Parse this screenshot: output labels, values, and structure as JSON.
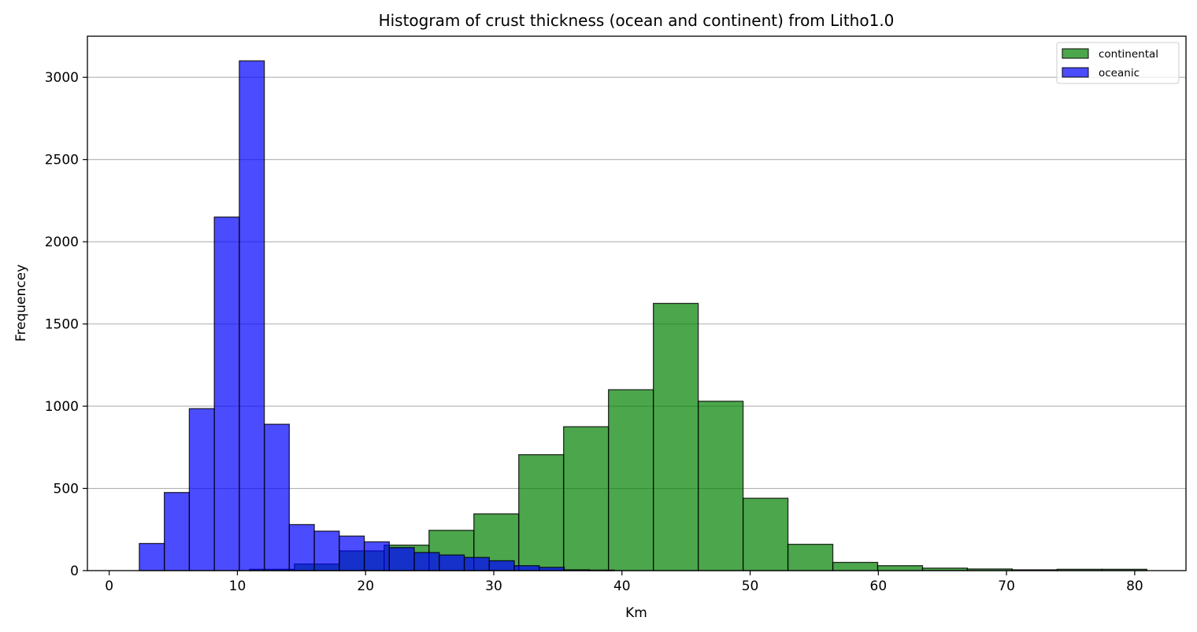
{
  "chart_data": {
    "type": "bar",
    "title": "Histogram of crust thickness (ocean and continent) from Litho1.0",
    "xlabel": "Km",
    "ylabel": "Frequencey",
    "xlim": [
      -1.7,
      84
    ],
    "ylim": [
      0,
      3250
    ],
    "xticks": [
      0,
      10,
      20,
      30,
      40,
      50,
      60,
      70,
      80
    ],
    "yticks": [
      0,
      500,
      1000,
      1500,
      2000,
      2500,
      3000
    ],
    "grid": "y",
    "legend_position": "top-right",
    "series": [
      {
        "name": "continental",
        "color": "#008000",
        "opacity": 0.7,
        "bins": [
          {
            "x0": 10.95,
            "x1": 14.45,
            "count": 8
          },
          {
            "x0": 14.45,
            "x1": 17.95,
            "count": 40
          },
          {
            "x0": 17.95,
            "x1": 21.45,
            "count": 120
          },
          {
            "x0": 21.45,
            "x1": 24.95,
            "count": 155
          },
          {
            "x0": 24.95,
            "x1": 28.45,
            "count": 245
          },
          {
            "x0": 28.45,
            "x1": 31.95,
            "count": 345
          },
          {
            "x0": 31.95,
            "x1": 35.45,
            "count": 705
          },
          {
            "x0": 35.45,
            "x1": 38.95,
            "count": 875
          },
          {
            "x0": 38.95,
            "x1": 42.45,
            "count": 1100
          },
          {
            "x0": 42.45,
            "x1": 45.95,
            "count": 1625
          },
          {
            "x0": 45.95,
            "x1": 49.45,
            "count": 1030
          },
          {
            "x0": 49.45,
            "x1": 52.95,
            "count": 440
          },
          {
            "x0": 52.95,
            "x1": 56.45,
            "count": 160
          },
          {
            "x0": 56.45,
            "x1": 59.95,
            "count": 50
          },
          {
            "x0": 59.95,
            "x1": 63.45,
            "count": 30
          },
          {
            "x0": 63.45,
            "x1": 66.95,
            "count": 15
          },
          {
            "x0": 66.95,
            "x1": 70.45,
            "count": 10
          },
          {
            "x0": 70.45,
            "x1": 73.95,
            "count": 5
          },
          {
            "x0": 73.95,
            "x1": 77.45,
            "count": 8
          },
          {
            "x0": 77.45,
            "x1": 80.95,
            "count": 8
          }
        ]
      },
      {
        "name": "oceanic",
        "color": "#0000ff",
        "opacity": 0.7,
        "bins": [
          {
            "x0": 2.35,
            "x1": 4.3,
            "count": 165
          },
          {
            "x0": 4.3,
            "x1": 6.25,
            "count": 475
          },
          {
            "x0": 6.25,
            "x1": 8.2,
            "count": 985
          },
          {
            "x0": 8.2,
            "x1": 10.15,
            "count": 2150
          },
          {
            "x0": 10.15,
            "x1": 12.1,
            "count": 3100
          },
          {
            "x0": 12.1,
            "x1": 14.05,
            "count": 890
          },
          {
            "x0": 14.05,
            "x1": 16.0,
            "count": 280
          },
          {
            "x0": 16.0,
            "x1": 17.95,
            "count": 240
          },
          {
            "x0": 17.95,
            "x1": 19.9,
            "count": 210
          },
          {
            "x0": 19.9,
            "x1": 21.85,
            "count": 175
          },
          {
            "x0": 21.85,
            "x1": 23.8,
            "count": 140
          },
          {
            "x0": 23.8,
            "x1": 25.75,
            "count": 110
          },
          {
            "x0": 25.75,
            "x1": 27.7,
            "count": 95
          },
          {
            "x0": 27.7,
            "x1": 29.65,
            "count": 80
          },
          {
            "x0": 29.65,
            "x1": 31.6,
            "count": 60
          },
          {
            "x0": 31.6,
            "x1": 33.55,
            "count": 30
          },
          {
            "x0": 33.55,
            "x1": 35.5,
            "count": 20
          },
          {
            "x0": 35.5,
            "x1": 37.45,
            "count": 5
          },
          {
            "x0": 37.45,
            "x1": 39.4,
            "count": 3
          }
        ]
      }
    ]
  }
}
